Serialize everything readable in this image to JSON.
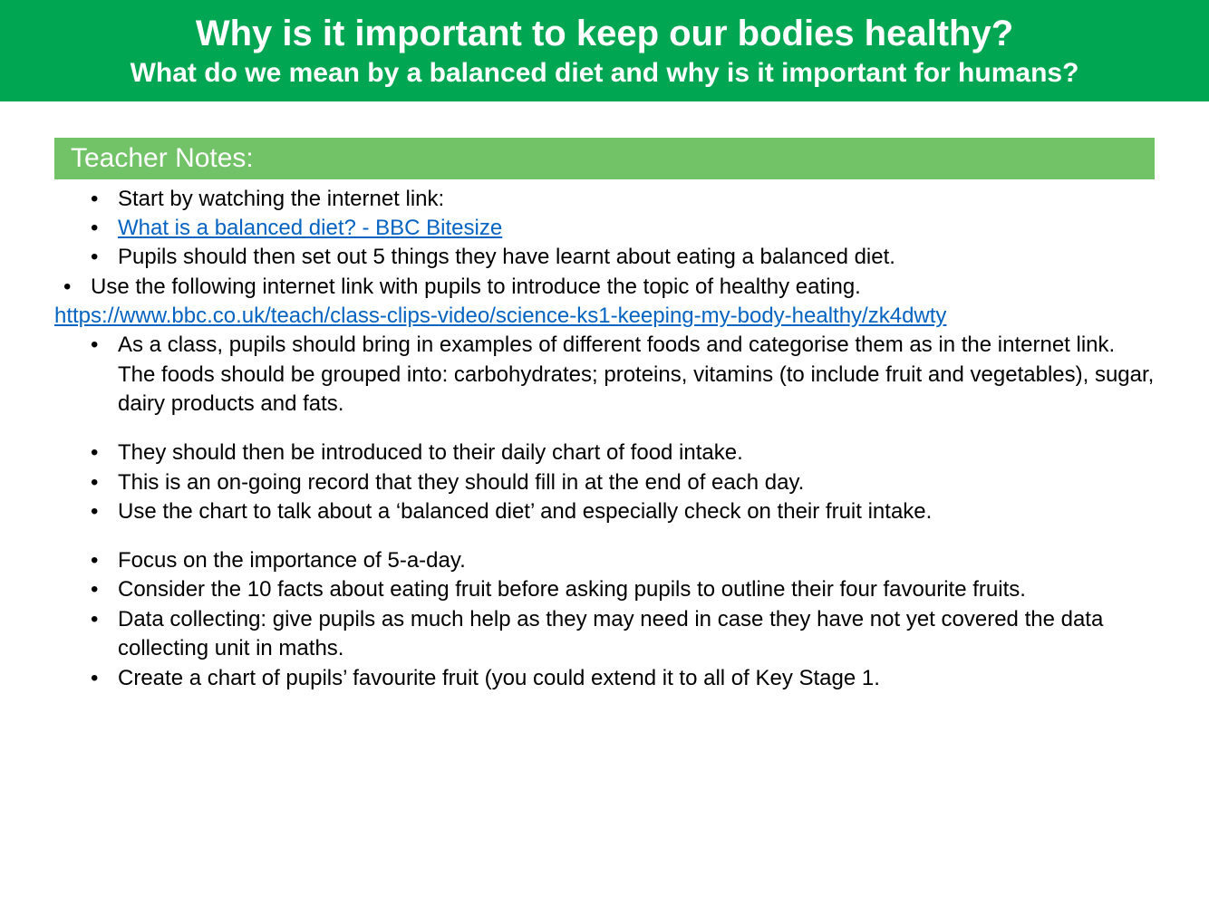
{
  "header": {
    "bg_color": "#00a651",
    "title": "Why is it important to keep our bodies healthy?",
    "title_fontsize": 40,
    "subtitle": "What do we mean by a balanced diet and why is it important for humans?",
    "subtitle_fontsize": 30,
    "text_color": "#ffffff"
  },
  "section": {
    "label": "Teacher Notes:",
    "bg_color": "#72c267",
    "text_color": "#ffffff",
    "fontsize": 30
  },
  "body": {
    "fontsize": 24,
    "text_color": "#000000",
    "link_color": "#0563c1"
  },
  "notes": {
    "b1": "Start by watching the internet link:",
    "b2_link": "What is a balanced diet? - BBC Bitesize",
    "b3": "Pupils should then set out 5 things they have learnt about eating a balanced diet.",
    "b4": "Use the following internet link with pupils to introduce the topic of healthy eating.",
    "b4_link": "https://www.bbc.co.uk/teach/class-clips-video/science-ks1-keeping-my-body-healthy/zk4dwty",
    "b5": "As a class, pupils should bring in examples of different foods and categorise them as in the internet link. The foods should be grouped into: carbohydrates; proteins, vitamins (to include fruit and vegetables), sugar, dairy products and fats.",
    "b6": "They should then be introduced to their daily chart of food intake.",
    "b7": "This is an on-going record that they should fill in at the end of each day.",
    "b8": "Use the chart to talk about a ‘balanced diet’ and especially check on their fruit intake.",
    "b9": "Focus on the importance of 5-a-day.",
    "b10": "Consider the 10 facts about eating fruit before asking pupils to outline their four favourite fruits.",
    "b11": "Data collecting: give pupils as much help as they may need in case they have not yet covered the data collecting unit in maths.",
    "b12": "Create a chart of pupils’ favourite fruit (you could extend it to all of Key Stage 1."
  }
}
